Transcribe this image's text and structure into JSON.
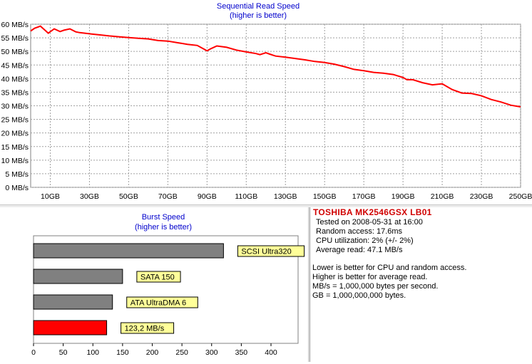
{
  "chart_data": [
    {
      "type": "line",
      "title": "Sequential Read Speed",
      "subtitle": "(higher is better)",
      "xlabel": "",
      "ylabel": "",
      "xlim": [
        0,
        250
      ],
      "ylim": [
        0,
        60
      ],
      "x_ticks": [
        "10GB",
        "30GB",
        "50GB",
        "70GB",
        "90GB",
        "110GB",
        "130GB",
        "150GB",
        "170GB",
        "190GB",
        "210GB",
        "230GB",
        "250GB"
      ],
      "x_tick_values": [
        10,
        30,
        50,
        70,
        90,
        110,
        130,
        150,
        170,
        190,
        210,
        230,
        250
      ],
      "y_ticks": [
        "0 MB/s",
        "5 MB/s",
        "10 MB/s",
        "15 MB/s",
        "20 MB/s",
        "25 MB/s",
        "30 MB/s",
        "35 MB/s",
        "40 MB/s",
        "45 MB/s",
        "50 MB/s",
        "55 MB/s",
        "60 MB/s"
      ],
      "y_tick_values": [
        0,
        5,
        10,
        15,
        20,
        25,
        30,
        35,
        40,
        45,
        50,
        55,
        60
      ],
      "grid": true,
      "line_color": "#ff0000",
      "series": [
        {
          "x": [
            0,
            2,
            5,
            7,
            9,
            12,
            15,
            17,
            20,
            23,
            25,
            30,
            35,
            40,
            45,
            50,
            55,
            60,
            65,
            70,
            75,
            80,
            85,
            88,
            90,
            92,
            95,
            100,
            105,
            110,
            115,
            117,
            120,
            122,
            125,
            130,
            135,
            140,
            145,
            150,
            155,
            160,
            165,
            170,
            175,
            180,
            185,
            190,
            192,
            195,
            200,
            205,
            210,
            215,
            220,
            225,
            230,
            235,
            240,
            245,
            250
          ],
          "y": [
            57.5,
            58.5,
            59.3,
            58.0,
            56.7,
            58.3,
            57.3,
            57.8,
            58.3,
            57.2,
            56.9,
            56.5,
            56.1,
            55.7,
            55.4,
            55.1,
            54.8,
            54.6,
            54.0,
            53.8,
            53.2,
            52.6,
            52.2,
            51.0,
            50.2,
            51.0,
            52.0,
            51.5,
            50.5,
            49.8,
            49.2,
            48.8,
            49.5,
            49.0,
            48.3,
            47.9,
            47.4,
            46.9,
            46.3,
            45.9,
            45.3,
            44.4,
            43.4,
            42.9,
            42.3,
            42.0,
            41.5,
            40.4,
            39.6,
            39.6,
            38.5,
            37.7,
            38.1,
            36.0,
            34.7,
            34.5,
            33.7,
            32.3,
            31.4,
            30.2,
            29.6
          ]
        }
      ]
    },
    {
      "type": "bar",
      "orientation": "horizontal",
      "title": "Burst Speed",
      "subtitle": "(higher is better)",
      "xlim": [
        0,
        400
      ],
      "x_ticks": [
        "0",
        "50",
        "100",
        "150",
        "200",
        "250",
        "300",
        "350",
        "400"
      ],
      "x_tick_values": [
        0,
        50,
        100,
        150,
        200,
        250,
        300,
        350,
        400
      ],
      "grid": false,
      "categories": [
        "SCSI Ultra320",
        "SATA 150",
        "ATA UltraDMA 6",
        "123,2 MB/s"
      ],
      "values": [
        320,
        150,
        133,
        123.2
      ],
      "bar_colors": [
        "#808080",
        "#808080",
        "#808080",
        "#ff0000"
      ],
      "label_bg": "#ffff99"
    }
  ],
  "info": {
    "title": "TOSHIBA MK2546GSX LB01",
    "details": [
      "Tested on 2008-05-31 at 16:00",
      "Random access: 17.6ms",
      "CPU utilization: 2% (+/- 2%)",
      "Average read: 47.1 MB/s"
    ],
    "notes": [
      "Lower is better for CPU and random access.",
      "Higher is better for average read.",
      "MB/s = 1,000,000 bytes per second.",
      "GB = 1,000,000,000 bytes."
    ]
  }
}
